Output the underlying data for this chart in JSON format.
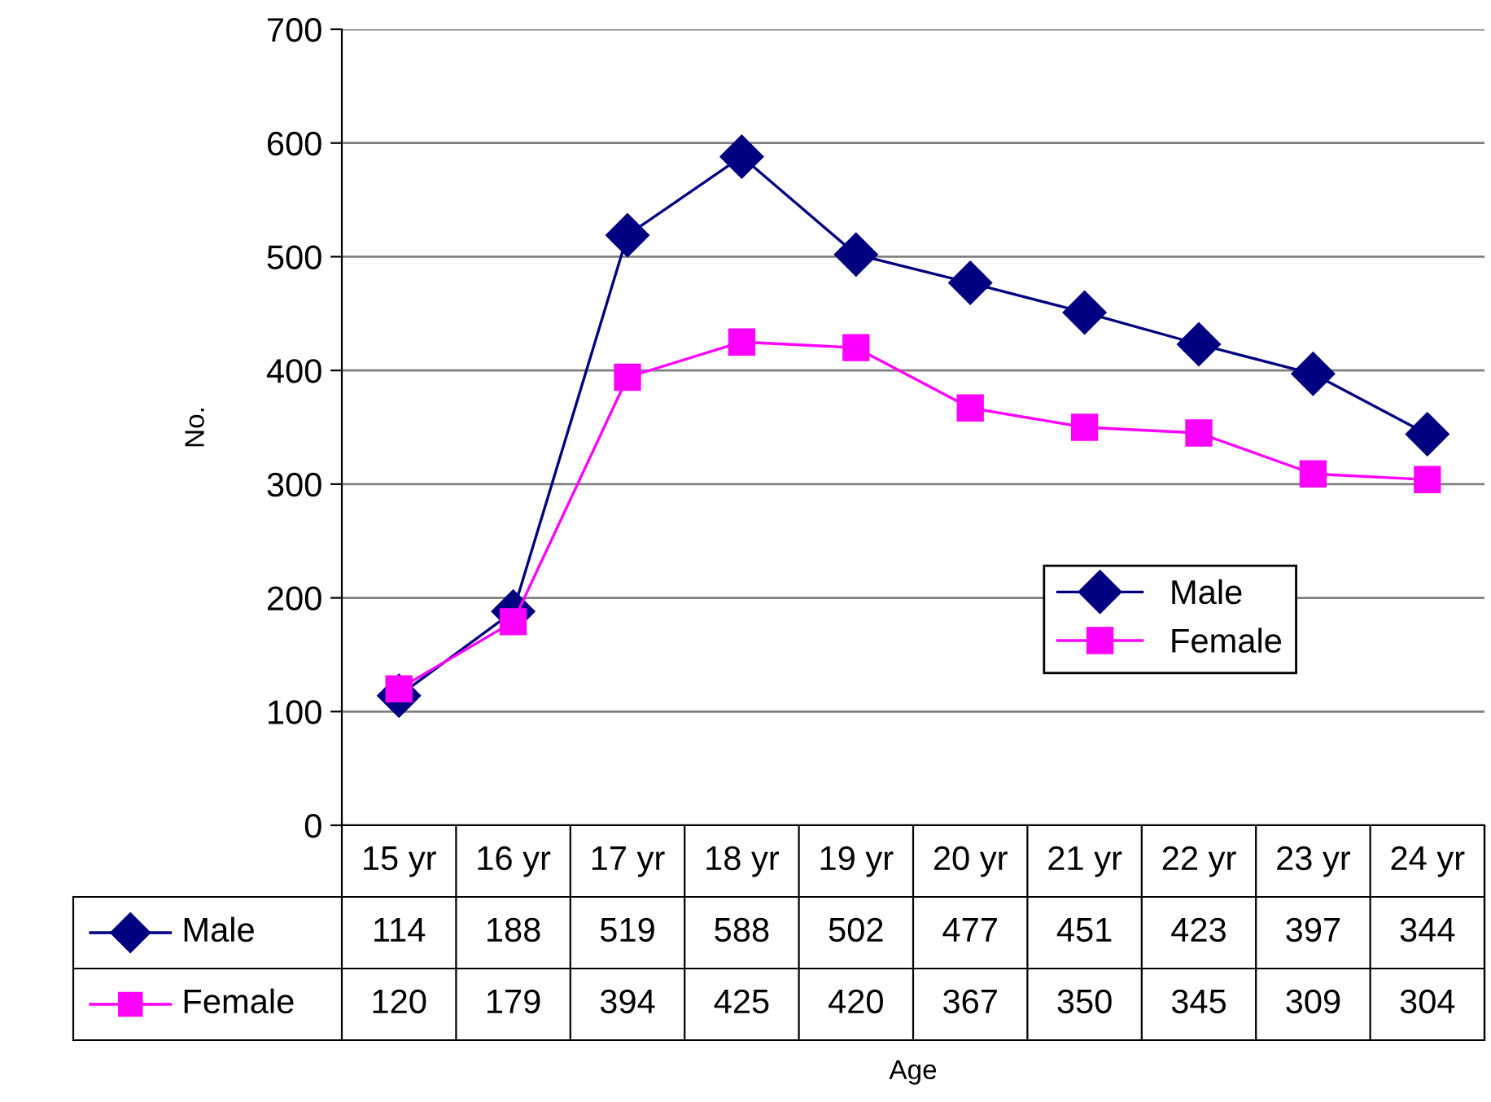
{
  "chart_data": {
    "type": "line",
    "annotations": [
      "Age"
    ],
    "ylabel": "No.",
    "categories": [
      "15 yr",
      "16 yr",
      "17 yr",
      "18 yr",
      "19 yr",
      "20 yr",
      "21 yr",
      "22 yr",
      "23 yr",
      "24 yr"
    ],
    "series": [
      {
        "name": "Male",
        "color": "#000080",
        "marker": "diamond",
        "values": [
          114,
          188,
          519,
          588,
          502,
          477,
          451,
          423,
          397,
          344
        ]
      },
      {
        "name": "Female",
        "color": "#ff00ff",
        "marker": "square",
        "values": [
          120,
          179,
          394,
          425,
          420,
          367,
          350,
          345,
          309,
          304
        ]
      }
    ],
    "ylim": [
      0,
      700
    ],
    "yticks": [
      0,
      100,
      200,
      300,
      400,
      500,
      600,
      700
    ],
    "grid": "y",
    "legend": "lower right",
    "data_labels": true,
    "line_style": "solid"
  }
}
